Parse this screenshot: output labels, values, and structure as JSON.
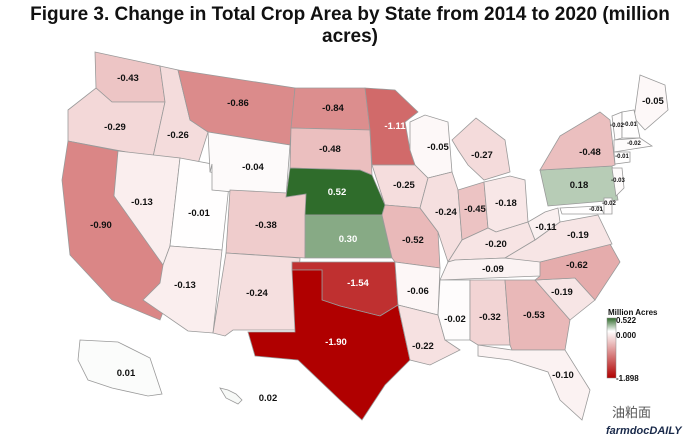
{
  "title": "Figure 3. Change in Total Crop Area by State from 2014 to 2020 (million acres)",
  "legend": {
    "title": "Million Acres",
    "max": "0.522",
    "mid": "0.000",
    "min": "-1.898",
    "colors": {
      "max": "#2e6b2a",
      "mid": "#ffffff",
      "min": "#b00000"
    }
  },
  "states": [
    {
      "name": "Washington",
      "label": "-0.43",
      "value": -0.43
    },
    {
      "name": "Oregon",
      "label": "-0.29",
      "value": -0.29
    },
    {
      "name": "California",
      "label": "-0.90",
      "value": -0.9
    },
    {
      "name": "Idaho",
      "label": "-0.26",
      "value": -0.26
    },
    {
      "name": "Nevada",
      "label": "-0.13",
      "value": -0.13
    },
    {
      "name": "Utah",
      "label": "-0.01",
      "value": -0.01
    },
    {
      "name": "Arizona",
      "label": "-0.13",
      "value": -0.13
    },
    {
      "name": "Montana",
      "label": "-0.86",
      "value": -0.86
    },
    {
      "name": "Wyoming",
      "label": "-0.04",
      "value": -0.04
    },
    {
      "name": "Colorado",
      "label": "-0.38",
      "value": -0.38
    },
    {
      "name": "New Mexico",
      "label": "-0.24",
      "value": -0.24
    },
    {
      "name": "North Dakota",
      "label": "-0.84",
      "value": -0.84
    },
    {
      "name": "South Dakota",
      "label": "-0.48",
      "value": -0.48
    },
    {
      "name": "Nebraska",
      "label": "0.52",
      "value": 0.52
    },
    {
      "name": "Kansas",
      "label": "0.30",
      "value": 0.3
    },
    {
      "name": "Oklahoma",
      "label": "-1.54",
      "value": -1.54
    },
    {
      "name": "Texas",
      "label": "-1.90",
      "value": -1.9
    },
    {
      "name": "Minnesota",
      "label": "-1.11",
      "value": -1.11
    },
    {
      "name": "Iowa",
      "label": "-0.25",
      "value": -0.25
    },
    {
      "name": "Missouri",
      "label": "-0.52",
      "value": -0.52
    },
    {
      "name": "Arkansas",
      "label": "-0.06",
      "value": -0.06
    },
    {
      "name": "Louisiana",
      "label": "-0.22",
      "value": -0.22
    },
    {
      "name": "Wisconsin",
      "label": "-0.05",
      "value": -0.05
    },
    {
      "name": "Illinois",
      "label": "-0.24",
      "value": -0.24
    },
    {
      "name": "Michigan",
      "label": "-0.27",
      "value": -0.27
    },
    {
      "name": "Indiana",
      "label": "-0.45",
      "value": -0.45
    },
    {
      "name": "Ohio",
      "label": "-0.18",
      "value": -0.18
    },
    {
      "name": "Kentucky",
      "label": "-0.20",
      "value": -0.2
    },
    {
      "name": "Tennessee",
      "label": "-0.09",
      "value": -0.09
    },
    {
      "name": "Mississippi",
      "label": "-0.02",
      "value": -0.02
    },
    {
      "name": "Alabama",
      "label": "-0.32",
      "value": -0.32
    },
    {
      "name": "Georgia",
      "label": "-0.53",
      "value": -0.53
    },
    {
      "name": "Florida",
      "label": "-0.10",
      "value": -0.1
    },
    {
      "name": "South Carolina",
      "label": "-0.19",
      "value": -0.19
    },
    {
      "name": "North Carolina",
      "label": "-0.62",
      "value": -0.62
    },
    {
      "name": "Virginia",
      "label": "-0.19",
      "value": -0.19
    },
    {
      "name": "West Virginia",
      "label": "-0.11",
      "value": -0.11
    },
    {
      "name": "Pennsylvania",
      "label": "0.18",
      "value": 0.18
    },
    {
      "name": "New York",
      "label": "-0.48",
      "value": -0.48
    },
    {
      "name": "Maine",
      "label": "-0.05",
      "value": -0.05
    },
    {
      "name": "Alaska",
      "label": "0.01",
      "value": 0.01
    },
    {
      "name": "Hawaii",
      "label": "0.02",
      "value": 0.02
    },
    {
      "name": "Vermont",
      "label": "-0.02",
      "value": -0.02
    },
    {
      "name": "New Hampshire",
      "label": "-0.01",
      "value": -0.01
    },
    {
      "name": "Massachusetts",
      "label": "-0.02",
      "value": -0.02
    },
    {
      "name": "Connecticut",
      "label": "-0.01",
      "value": -0.01
    },
    {
      "name": "New Jersey",
      "label": "-0.03",
      "value": -0.03
    },
    {
      "name": "Maryland",
      "label": "-0.01",
      "value": -0.01
    },
    {
      "name": "Delaware",
      "label": "-0.02",
      "value": -0.02
    }
  ],
  "watermark": "油粕面",
  "brand": "farmdocDAILY"
}
